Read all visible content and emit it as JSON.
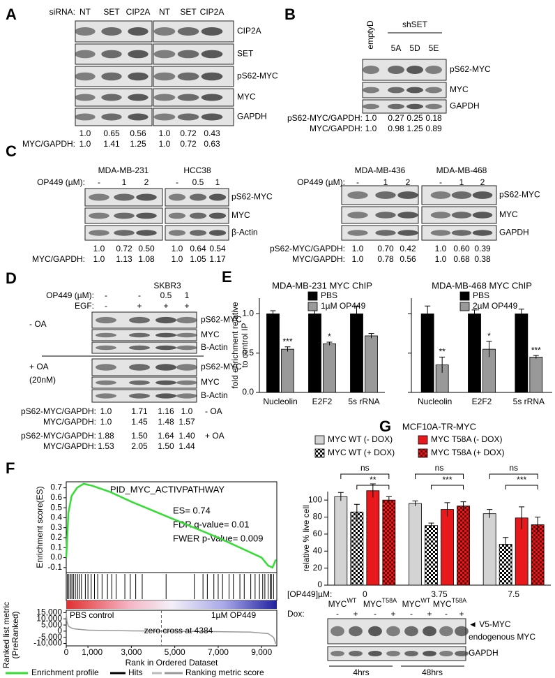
{
  "panels": {
    "A": {
      "label": "A",
      "row_label": "siRNA:",
      "lanes": [
        "NT",
        "SET",
        "CIP2A",
        "NT",
        "SET",
        "CIP2A"
      ],
      "bands": [
        "CIP2A",
        "SET",
        "pS62-MYC",
        "MYC",
        "GAPDH"
      ],
      "quant": [
        {
          "values": [
            "1.0",
            "0.65",
            "0.56",
            "1.0",
            "0.72",
            "0.43"
          ]
        },
        {
          "label": "MYC/GAPDH:",
          "values": [
            "1.0",
            "1.41",
            "1.25",
            "1.0",
            "0.72",
            "0.63"
          ]
        }
      ]
    },
    "B": {
      "label": "B",
      "lanes": [
        "emptyD",
        "5A",
        "5D",
        "5E"
      ],
      "group": "shSET",
      "bands": [
        "pS62-MYC",
        "MYC",
        "GAPDH"
      ],
      "quant": [
        {
          "label": "pS62-MYC/GAPDH:",
          "values": [
            "1.0",
            "0.27",
            "0.25",
            "0.18"
          ]
        },
        {
          "label": "MYC/GAPDH:",
          "values": [
            "1.0",
            "0.98",
            "1.25",
            "0.89"
          ]
        }
      ]
    },
    "C": {
      "label": "C",
      "left": {
        "cell_lines": [
          "MDA-MB-231",
          "HCC38"
        ],
        "row_label": "OP449 (µM):",
        "lanes": [
          "-",
          "1",
          "2",
          "-",
          "0.5",
          "1"
        ],
        "bands": [
          "pS62-MYC",
          "MYC",
          "β-Actin"
        ],
        "quant": [
          {
            "values": [
              "1.0",
              "0.72",
              "0.50",
              "1.0",
              "0.64",
              "0.54"
            ]
          },
          {
            "label": "MYC/GAPDH:",
            "values": [
              "1.0",
              "1.13",
              "1.08",
              "1.0",
              "1.05",
              "1.17"
            ]
          }
        ]
      },
      "right": {
        "cell_lines": [
          "MDA-MB-436",
          "MDA-MB-468"
        ],
        "row_label": "OP449 (µM):",
        "lanes": [
          "-",
          "1",
          "2",
          "-",
          "1",
          "2"
        ],
        "bands": [
          "pS62-MYC",
          "MYC",
          "GAPDH"
        ],
        "quant": [
          {
            "label": "pS62-MYC/GAPDH:",
            "values": [
              "1.0",
              "0.70",
              "0.42",
              "1.0",
              "0.60",
              "0.39"
            ]
          },
          {
            "label": "MYC/GAPDH:",
            "values": [
              "1.0",
              "0.78",
              "0.56",
              "1.0",
              "0.68",
              "0.38"
            ]
          }
        ]
      }
    },
    "D": {
      "label": "D",
      "title": "SKBR3",
      "rows": [
        {
          "label": "OP449 (µM):",
          "values": [
            "-",
            "-",
            "0.5",
            "1"
          ]
        },
        {
          "label": "EGF:",
          "values": [
            "-",
            "+",
            "+",
            "+"
          ]
        }
      ],
      "bands": [
        "pS62-MYC",
        "MYC",
        "B-Actin"
      ],
      "conditions": [
        {
          "label": "-  OA"
        },
        {
          "label": "+ OA",
          "sub": "(20nM)"
        }
      ],
      "quant": [
        {
          "label": "pS62-MYC/GAPDH:",
          "values": [
            "1.0",
            "1.71",
            "1.16",
            "1.0"
          ],
          "note": "-  OA"
        },
        {
          "label": "MYC/GAPDH:",
          "values": [
            "1.0",
            "1.45",
            "1.48",
            "1.57"
          ]
        },
        {
          "label": "pS62-MYC/GAPDH:",
          "values": [
            "1.88",
            "1.50",
            "1.64",
            "1.40"
          ],
          "note": "+ OA"
        },
        {
          "label": "MYC/GAPDH:",
          "values": [
            "1.53",
            "2.05",
            "1.50",
            "1.44"
          ]
        }
      ]
    },
    "E": {
      "label": "E"
    },
    "F": {
      "label": "F"
    },
    "G": {
      "label": "G",
      "dox_label": "Dox:",
      "dox": [
        "-",
        "+",
        "-",
        "+",
        "-",
        "+",
        "-",
        "+"
      ],
      "constructs": [
        {
          "name": "MYC",
          "sup": "WT"
        },
        {
          "name": "MYC",
          "sup": "T58A"
        },
        {
          "name": "MYC",
          "sup": "WT"
        },
        {
          "name": "MYC",
          "sup": "T58A"
        }
      ],
      "bands": [
        "◄ V5-MYC",
        "endogenous MYC",
        "GAPDH"
      ],
      "times": [
        "4hrs",
        "48hrs"
      ]
    }
  },
  "chart_data": [
    {
      "type": "bar",
      "title": "MDA-MB-231 MYC ChIP",
      "ylabel": [
        "fold enrichment relative",
        "to control IP"
      ],
      "categories": [
        "Nucleolin",
        "E2F2",
        "5s rRNA"
      ],
      "ylim": [
        0,
        1.2
      ],
      "yticks": [
        {
          "value": 0,
          "label": "0.0"
        },
        {
          "value": 0.5,
          "label": "0.5"
        },
        {
          "value": 1,
          "label": "1.0"
        }
      ],
      "series": [
        {
          "name": "PBS",
          "color": "#000000",
          "values": [
            1.0,
            1.0,
            1.0
          ],
          "errors": [
            0.04,
            0.04,
            0.1
          ]
        },
        {
          "name": "1µM OP449",
          "color": "#999999",
          "values": [
            0.55,
            0.62,
            0.72
          ],
          "errors": [
            0.03,
            0.02,
            0.03
          ],
          "significance": [
            "***",
            "*",
            null
          ]
        }
      ]
    },
    {
      "type": "bar",
      "title": "MDA-MB-468 MYC ChIP",
      "categories": [
        "Nucleolin",
        "E2F2",
        "5s rRNA"
      ],
      "ylim": [
        0,
        1.2
      ],
      "yticks": [
        0,
        0.5,
        1
      ],
      "series": [
        {
          "name": "PBS",
          "color": "#000000",
          "values": [
            1.0,
            1.0,
            1.0
          ],
          "errors": [
            0.1,
            0.05,
            0.06
          ]
        },
        {
          "name": "2µM OP449",
          "color": "#999999",
          "values": [
            0.35,
            0.55,
            0.45
          ],
          "errors": [
            0.1,
            0.1,
            0.02
          ],
          "significance": [
            "**",
            "*",
            "***"
          ]
        }
      ]
    },
    {
      "type": "line",
      "title": "PID_MYC_ACTIVPATHWAY",
      "ylabel": "Enrichment score(ES)",
      "annotations": [
        "ES= 0.74",
        "FDR q-value= 0.01",
        "FWER p-Value= 0.009"
      ],
      "xlim": [
        0,
        9700
      ],
      "xticks": [
        0,
        {
          "value": 1000,
          "label": "1,000"
        },
        {
          "value": 3000,
          "label": "3,000"
        },
        {
          "value": 5000,
          "label": "5,000"
        },
        {
          "value": 7000,
          "label": "7,000"
        },
        {
          "value": 9000,
          "label": "9,000"
        }
      ],
      "xlabel": "Rank in Ordered Dataset",
      "ylim": [
        -0.15,
        0.76
      ],
      "yticks": [
        0.7,
        0.6,
        0.5,
        0.4,
        0.3,
        0.2,
        0.1,
        {
          "value": 0,
          "label": "0.0"
        },
        -0.1
      ],
      "series": [
        {
          "name": "Enrichment profile",
          "color": "#33dd33",
          "x": [
            0,
            100,
            250,
            500,
            800,
            1200,
            2000,
            3000,
            4000,
            5000,
            6000,
            7000,
            8000,
            9000,
            9300,
            9500,
            9600,
            9650
          ],
          "values": [
            0,
            0.45,
            0.62,
            0.7,
            0.74,
            0.72,
            0.66,
            0.56,
            0.47,
            0.38,
            0.29,
            0.2,
            0.1,
            0.0,
            -0.08,
            -0.1,
            -0.05,
            -0.02
          ]
        }
      ],
      "hits": {
        "name": "Hits",
        "color": "#000000",
        "x": [
          50,
          120,
          200,
          260,
          330,
          420,
          520,
          600,
          700,
          880,
          1000,
          1150,
          1300,
          1450,
          1650,
          1900,
          2100,
          2300,
          2700,
          2950,
          3200,
          3500,
          4600,
          5900,
          6300,
          6500,
          6800,
          7000,
          7200,
          7500,
          7700,
          8000,
          8200,
          8500,
          8700,
          8900,
          9050,
          9150,
          9300,
          9400,
          9450,
          9550
        ]
      },
      "metric": {
        "name": "Ranking metric score",
        "color": "#999999",
        "ylabel": [
          "Ranked list metric",
          "(PreRanked)"
        ],
        "x": [
          0,
          30,
          100,
          300,
          1000,
          3000,
          4384,
          6000,
          8500,
          9300,
          9550,
          9650,
          9700
        ],
        "values": [
          15000,
          8000,
          4000,
          2000,
          800,
          200,
          0,
          -200,
          -800,
          -2000,
          -5000,
          -10000,
          -10000
        ],
        "ylim": [
          -12000,
          17000
        ],
        "yticks": [
          {
            "value": 15000,
            "label": "15,000"
          },
          {
            "value": 10000,
            "label": "10,000"
          },
          {
            "value": 5000,
            "label": "5,000"
          },
          0,
          {
            "value": -5000,
            "label": "-5,000"
          },
          {
            "value": -10000,
            "label": "-10,000"
          }
        ],
        "labels": [
          "PBS control",
          "1µM OP449"
        ],
        "zero_cross": {
          "value": 4384,
          "label": "zero cross at 4384"
        }
      }
    },
    {
      "type": "bar",
      "title": "MCF10A-TR-MYC",
      "ylabel": "relative % live cell",
      "xlabel": "[OP449]µM:",
      "categories": [
        "0",
        "3.75",
        "7.5"
      ],
      "ylim": [
        0,
        110
      ],
      "yticks": [
        0,
        20,
        40,
        60,
        80,
        100
      ],
      "series": [
        {
          "name": "MYC WT (- DOX)",
          "color": "#d3d3d3",
          "values": [
            104,
            96,
            84
          ],
          "errors": [
            5,
            3,
            5
          ]
        },
        {
          "name": "MYC WT (+ DOX)",
          "color": "#ffffff",
          "pattern": {
            "type": "checker",
            "color": "#000000"
          },
          "values": [
            86,
            70,
            48
          ],
          "errors": [
            9,
            3,
            8
          ]
        },
        {
          "name": "MYC T58A (- DOX)",
          "color": "#e8191c",
          "values": [
            111,
            89,
            79
          ],
          "errors": [
            8,
            8,
            13
          ]
        },
        {
          "name": "MYC T58A (+ DOX)",
          "color": "#e8191c",
          "pattern": {
            "type": "checker",
            "color": "#6a0000"
          },
          "values": [
            100,
            93,
            71
          ],
          "errors": [
            4,
            5,
            9
          ]
        }
      ],
      "comparisons": [
        {
          "ns": "ns",
          "sig": "**"
        },
        {
          "ns": "ns",
          "sig": "***"
        },
        {
          "ns": "ns",
          "sig": "***"
        }
      ]
    }
  ]
}
